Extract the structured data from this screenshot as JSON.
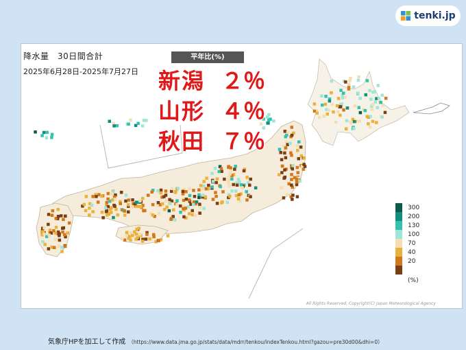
{
  "brand": {
    "name": "tenki.jp",
    "icon": "tenki-logo-icon"
  },
  "map": {
    "title": "降水量　30日間合計",
    "date_range": "2025年6月28日-2025年7月27日",
    "ratio_label": "平年比(%)",
    "highlights": [
      {
        "name": "新潟",
        "value": "２％"
      },
      {
        "name": "山形",
        "value": "４％"
      },
      {
        "name": "秋田",
        "value": "７％"
      }
    ],
    "legend": {
      "levels": [
        {
          "label": "300",
          "color": "#0b5a4d"
        },
        {
          "label": "200",
          "color": "#108f7f"
        },
        {
          "label": "130",
          "color": "#33c2b0"
        },
        {
          "label": "100",
          "color": "#9fe6da"
        },
        {
          "label": "70",
          "color": "#f3dfb3"
        },
        {
          "label": "40",
          "color": "#eab23b"
        },
        {
          "label": "20",
          "color": "#d3771b"
        },
        {
          "label": "",
          "color": "#7b3d12"
        }
      ],
      "unit": "(%)"
    },
    "copyright": "All Rights Reserved, Copyright(C) Japan Meteorological Agency"
  },
  "footer": {
    "source": "気象庁HPを加工して作成",
    "url": "（https://www.data.jma.go.jp/stats/data/mdrr/tenkou/indexTenkou.html?gazou=pre30d00&dhi=0）"
  }
}
